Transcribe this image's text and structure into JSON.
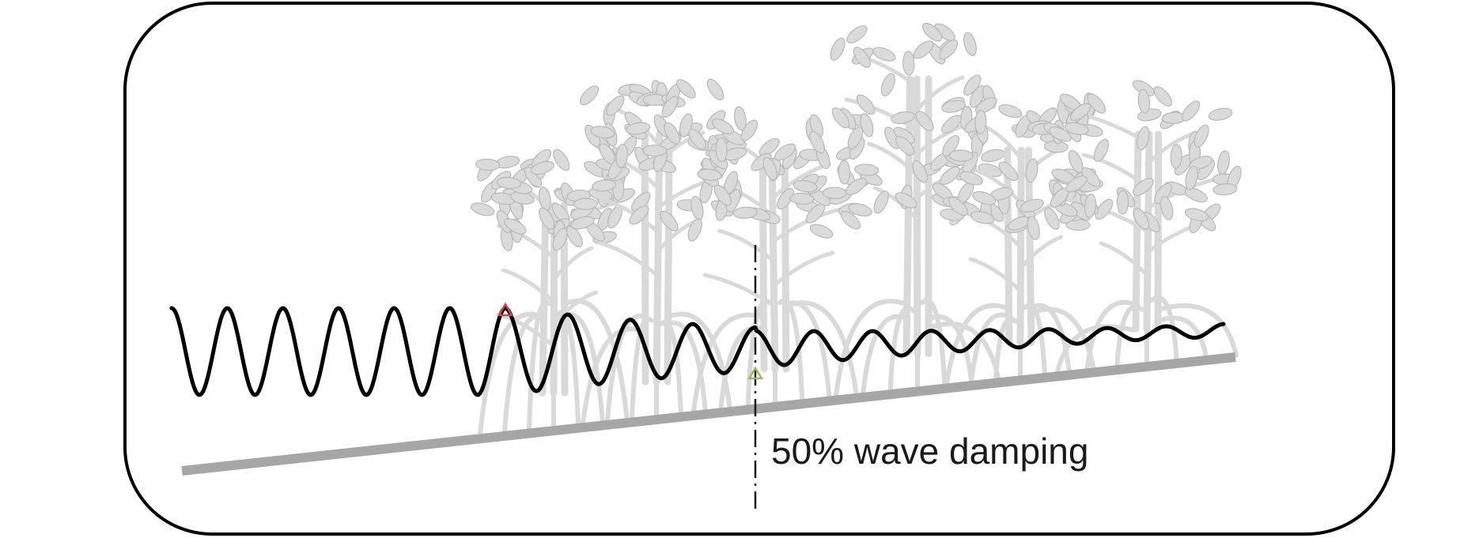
{
  "annotation": {
    "label": "50% wave damping"
  },
  "wave": {
    "incoming_cycles": 6,
    "damped_cycles_before_marker": 4,
    "damped_cycles_after_marker": 8,
    "damping_at_marker_fraction": 0.5
  },
  "colors": {
    "frame": "#000000",
    "ground": "#a6a6a6",
    "wave": "#000000",
    "mangrove": "#d9d9d9",
    "start_marker": "#c0504d",
    "half_damping_marker": "#9bbb59"
  },
  "icons": {
    "start_marker": "triangle-up-icon",
    "half_damping_marker": "triangle-up-icon",
    "vegetation": "mangrove-tree-icon"
  }
}
